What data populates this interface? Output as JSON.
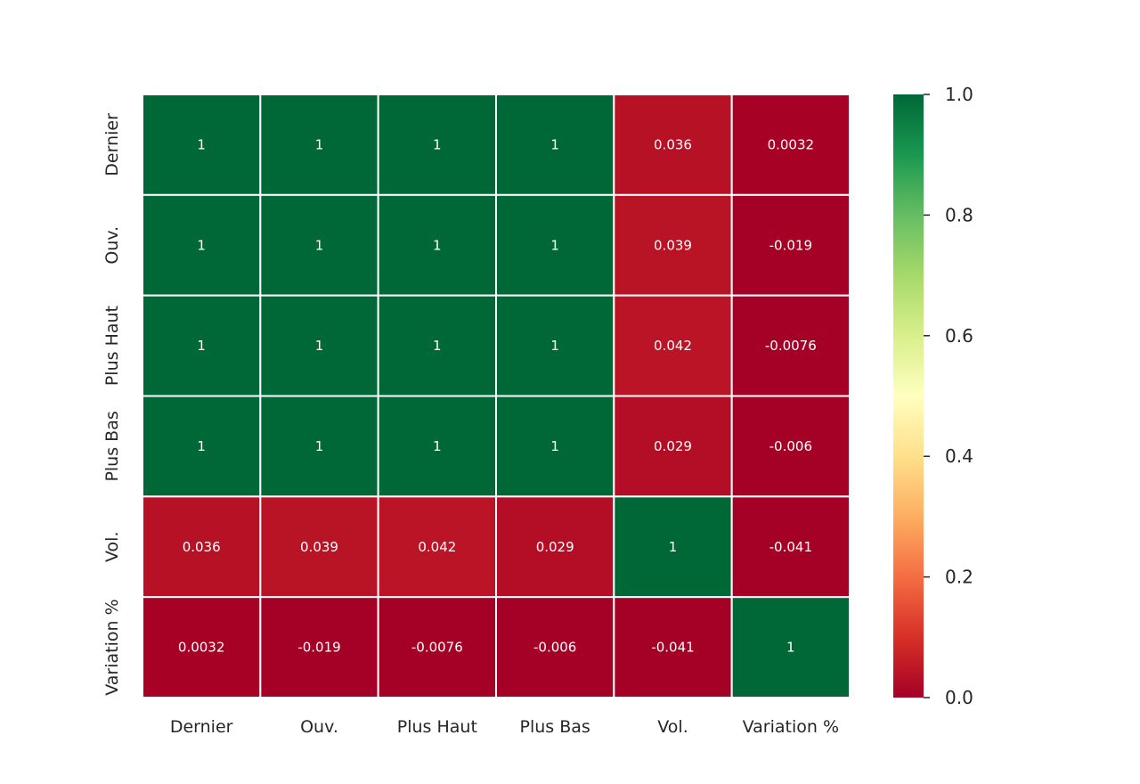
{
  "chart_data": {
    "type": "heatmap",
    "title": "",
    "xlabel": "",
    "ylabel": "",
    "x_labels": [
      "Dernier",
      "Ouv.",
      "Plus Haut",
      "Plus Bas",
      "Vol.",
      "Variation %"
    ],
    "y_labels": [
      "Dernier",
      "Ouv.",
      "Plus Haut",
      "Plus Bas",
      "Vol.",
      "Variation %"
    ],
    "values": [
      [
        1,
        1,
        1,
        1,
        0.036,
        0.0032
      ],
      [
        1,
        1,
        1,
        1,
        0.039,
        -0.019
      ],
      [
        1,
        1,
        1,
        1,
        0.042,
        -0.0076
      ],
      [
        1,
        1,
        1,
        1,
        0.029,
        -0.006
      ],
      [
        0.036,
        0.039,
        0.042,
        0.029,
        1,
        -0.041
      ],
      [
        0.0032,
        -0.019,
        -0.0076,
        -0.006,
        -0.041,
        1
      ]
    ],
    "cell_text": [
      [
        "1",
        "1",
        "1",
        "1",
        "0.036",
        "0.0032"
      ],
      [
        "1",
        "1",
        "1",
        "1",
        "0.039",
        "-0.019"
      ],
      [
        "1",
        "1",
        "1",
        "1",
        "0.042",
        "-0.0076"
      ],
      [
        "1",
        "1",
        "1",
        "1",
        "0.029",
        "-0.006"
      ],
      [
        "0.036",
        "0.039",
        "0.042",
        "0.029",
        "1",
        "-0.041"
      ],
      [
        "0.0032",
        "-0.019",
        "-0.0076",
        "-0.006",
        "-0.041",
        "1"
      ]
    ],
    "colormap": "RdYlGn",
    "vmin": 0,
    "vmax": 1,
    "colorbar_ticks": [
      "0.0",
      "0.2",
      "0.4",
      "0.6",
      "0.8",
      "1.0"
    ],
    "colorbar_position": "right",
    "annotated": true,
    "grid_line_color": "#ffffff"
  }
}
